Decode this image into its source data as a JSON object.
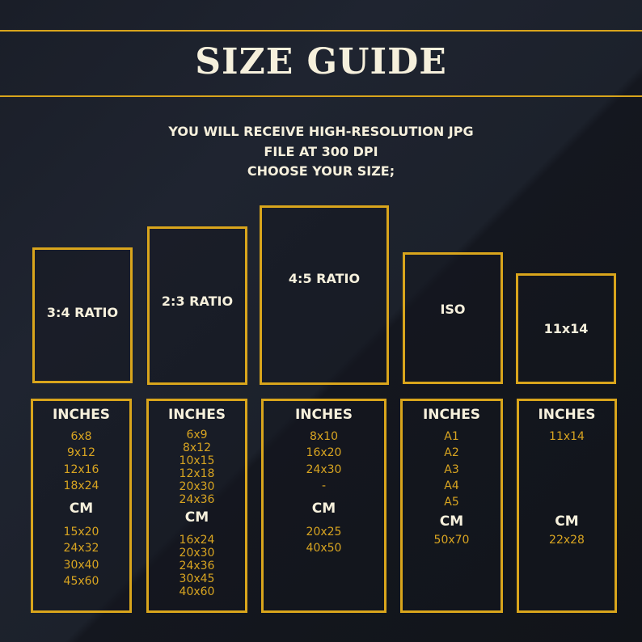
{
  "header": {
    "title": "SIZE GUIDE",
    "subtitle_lines": [
      "YOU WILL RECEIVE  HIGH-RESOLUTION JPG",
      "FILE AT 300 DPI",
      "CHOOSE YOUR SIZE;"
    ]
  },
  "colors": {
    "accent": "#d9a51c",
    "text": "#f6f0dc",
    "background": "#1b1f29"
  },
  "columns": [
    {
      "ratio": "3:4 RATIO",
      "inches_label": "INCHES",
      "inches": [
        "6x8",
        "9x12",
        "12x16",
        "18x24"
      ],
      "cm_label": "CM",
      "cm": [
        "15x20",
        "24x32",
        "30x40",
        "45x60"
      ]
    },
    {
      "ratio": "2:3 RATIO",
      "inches_label": "INCHES",
      "inches": [
        "6x9",
        "8x12",
        "10x15",
        "12x18",
        "20x30",
        "24x36"
      ],
      "cm_label": "CM",
      "cm": [
        "16x24",
        "20x30",
        "24x36",
        "30x45",
        "40x60"
      ]
    },
    {
      "ratio": "4:5 RATIO",
      "inches_label": "INCHES",
      "inches": [
        "8x10",
        "16x20",
        "24x30",
        "-"
      ],
      "cm_label": "CM",
      "cm": [
        "20x25",
        "40x50"
      ]
    },
    {
      "ratio": "ISO",
      "inches_label": "INCHES",
      "inches": [
        "A1",
        "A2",
        "A3",
        "A4",
        "A5"
      ],
      "cm_label": "CM",
      "cm": [
        "50x70"
      ]
    },
    {
      "ratio": "11x14",
      "inches_label": "INCHES",
      "inches": [
        "11x14"
      ],
      "cm_label": "CM",
      "cm": [
        "22x28"
      ]
    }
  ]
}
